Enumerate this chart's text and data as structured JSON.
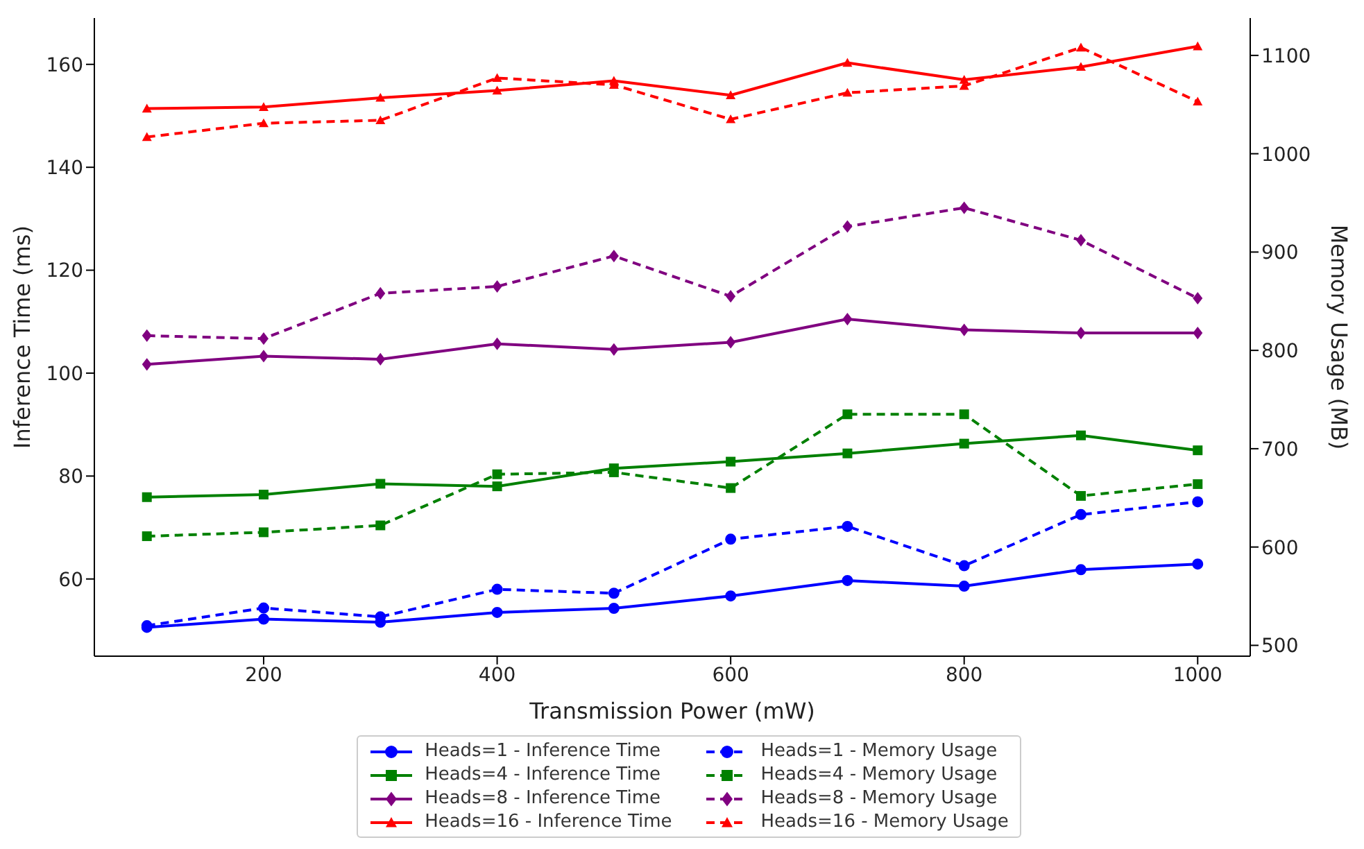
{
  "chart_data": {
    "type": "line",
    "xlabel": "Transmission Power (mW)",
    "ylabel": "Inference Time (ms)",
    "y2label": "Memory Usage (MB)",
    "x": [
      100,
      200,
      300,
      400,
      500,
      600,
      700,
      800,
      900,
      1000
    ],
    "xlim": [
      55,
      1045
    ],
    "xticks": [
      200,
      400,
      600,
      800,
      1000
    ],
    "ylim": [
      45,
      169
    ],
    "yticks": [
      60,
      80,
      100,
      120,
      140,
      160
    ],
    "y2lim": [
      489,
      1138
    ],
    "y2ticks": [
      500,
      600,
      700,
      800,
      900,
      1000,
      1100
    ],
    "grid": false,
    "legend": "bottom",
    "series": [
      {
        "name": "Heads=1 - Inference Time",
        "color": "#0000ff",
        "marker": "circle",
        "line_style": "solid",
        "values": [
          50.6,
          52.2,
          51.6,
          53.5,
          54.3,
          56.7,
          59.7,
          58.6,
          61.8,
          62.9
        ]
      },
      {
        "name": "Heads=1 - Memory Usage",
        "color": "#0000ff",
        "marker": "circle",
        "line_style": "dashed",
        "axis": "y2",
        "values": [
          520,
          538,
          529,
          557,
          553,
          608,
          621,
          581,
          633,
          646
        ]
      },
      {
        "name": "Heads=4 - Inference Time",
        "color": "#008000",
        "marker": "square",
        "line_style": "solid",
        "values": [
          75.9,
          76.4,
          78.5,
          78.0,
          81.5,
          82.8,
          84.4,
          86.3,
          87.9,
          85.0
        ]
      },
      {
        "name": "Heads=4 - Memory Usage",
        "color": "#008000",
        "marker": "square",
        "line_style": "dashed",
        "axis": "y2",
        "values": [
          611,
          615,
          622,
          674,
          676,
          660,
          735,
          735,
          652,
          664
        ]
      },
      {
        "name": "Heads=8 - Inference Time",
        "color": "#800080",
        "marker": "diamond",
        "line_style": "solid",
        "values": [
          101.7,
          103.3,
          102.7,
          105.7,
          104.6,
          106.0,
          110.5,
          108.4,
          107.8,
          107.8
        ]
      },
      {
        "name": "Heads=8 - Memory Usage",
        "color": "#800080",
        "marker": "diamond",
        "line_style": "dashed",
        "axis": "y2",
        "values": [
          815,
          812,
          858,
          865,
          896,
          855,
          926,
          945,
          912,
          853
        ]
      },
      {
        "name": "Heads=16 - Inference Time",
        "color": "#ff0000",
        "marker": "triangle",
        "line_style": "solid",
        "values": [
          151.4,
          151.7,
          153.5,
          154.9,
          156.8,
          154.0,
          160.3,
          157.0,
          159.5,
          163.5
        ]
      },
      {
        "name": "Heads=16 - Memory Usage",
        "color": "#ff0000",
        "marker": "triangle",
        "line_style": "dashed",
        "axis": "y2",
        "values": [
          1017,
          1031,
          1034,
          1077,
          1070,
          1035,
          1062,
          1069,
          1108,
          1053
        ]
      }
    ]
  }
}
